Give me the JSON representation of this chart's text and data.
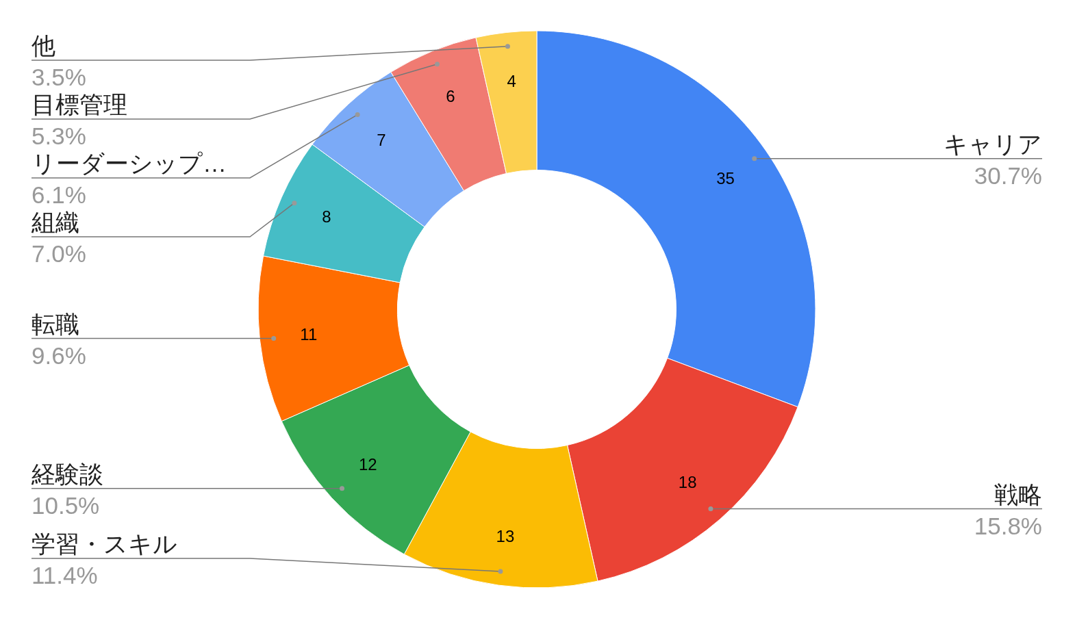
{
  "chart_data": {
    "type": "donut",
    "categories": [
      "キャリア",
      "戦略",
      "学習・スキル",
      "経験談",
      "転職",
      "組織",
      "リーダーシップ…",
      "目標管理",
      "他"
    ],
    "values": [
      35,
      18,
      13,
      12,
      11,
      8,
      7,
      6,
      4
    ],
    "colors": [
      "#4285f4",
      "#ea4335",
      "#fbbc04",
      "#34a853",
      "#ff6d01",
      "#46bdc6",
      "#7baaf7",
      "#f07b72",
      "#fcd04f"
    ],
    "value_labels": [
      "35",
      "18",
      "13",
      "12",
      "11",
      "8",
      "7",
      "6",
      "4"
    ],
    "annotations": [
      {
        "text": "30.7%",
        "x": "キャリア"
      },
      {
        "text": "15.8%",
        "x": "戦略"
      },
      {
        "text": "11.4%",
        "x": "学習・スキル"
      },
      {
        "text": "10.5%",
        "x": "経験談"
      },
      {
        "text": "9.6%",
        "x": "転職"
      },
      {
        "text": "7.0%",
        "x": "組織"
      },
      {
        "text": "6.1%",
        "x": "リーダーシップ…"
      },
      {
        "text": "5.3%",
        "x": "目標管理"
      },
      {
        "text": "3.5%",
        "x": "他"
      }
    ]
  }
}
